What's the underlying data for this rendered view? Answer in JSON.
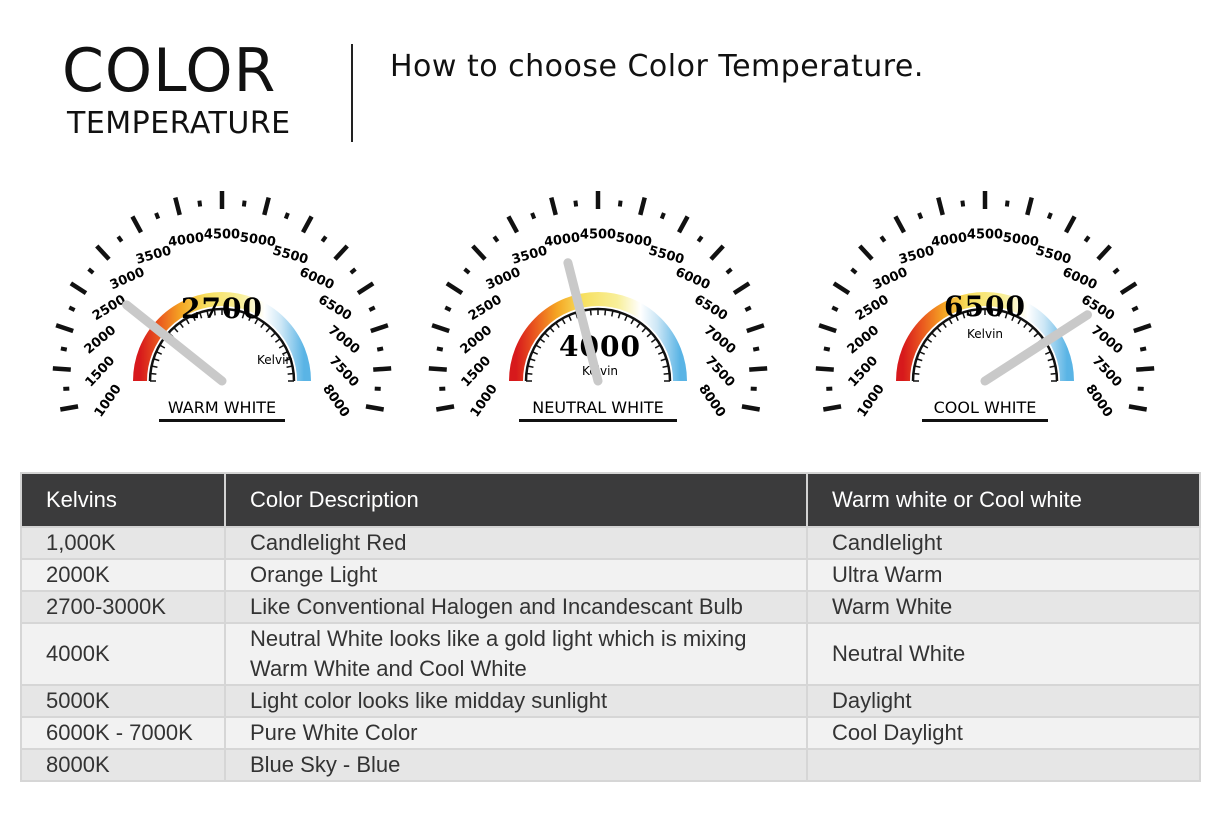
{
  "header": {
    "title": "COLOR",
    "title_sub": "TEMPERATURE",
    "subtitle": "How to choose Color Temperature."
  },
  "scale": {
    "min": 1000,
    "max": 8000,
    "labels": [
      "1000",
      "1500",
      "2000",
      "2500",
      "3000",
      "3500",
      "4000",
      "4500",
      "5000",
      "5500",
      "6000",
      "6500",
      "7000",
      "7500",
      "8000"
    ]
  },
  "gauges": [
    {
      "value": 2700,
      "value_text": "2700",
      "unit": "Kelvin",
      "label": "WARM WHITE"
    },
    {
      "value": 4000,
      "value_text": "4000",
      "unit": "Kelvin",
      "label": "NEUTRAL WHITE"
    },
    {
      "value": 6500,
      "value_text": "6500",
      "unit": "Kelvin",
      "label": "COOL WHITE"
    }
  ],
  "colors": {
    "red": "#d7191c",
    "orange": "#f08a24",
    "yellow": "#f7e36a",
    "blue": "#5ab4e5",
    "needle": "#c9c9c9",
    "header_bg": "#3b3b3c"
  },
  "table": {
    "headers": [
      "Kelvins",
      "Color Description",
      "Warm white or Cool white"
    ],
    "rows": [
      [
        "1,000K",
        "Candlelight Red",
        "Candlelight"
      ],
      [
        "2000K",
        "Orange Light",
        "Ultra Warm"
      ],
      [
        "2700-3000K",
        "Like Conventional Halogen and Incandescant Bulb",
        "Warm White"
      ],
      [
        "4000K",
        "Neutral White looks like a gold light which is mixing Warm White and Cool White",
        "Neutral White"
      ],
      [
        "5000K",
        "Light color looks like midday sunlight",
        "Daylight"
      ],
      [
        "6000K - 7000K",
        "Pure White Color",
        "Cool Daylight"
      ],
      [
        "8000K",
        "Blue Sky - Blue",
        ""
      ]
    ]
  }
}
